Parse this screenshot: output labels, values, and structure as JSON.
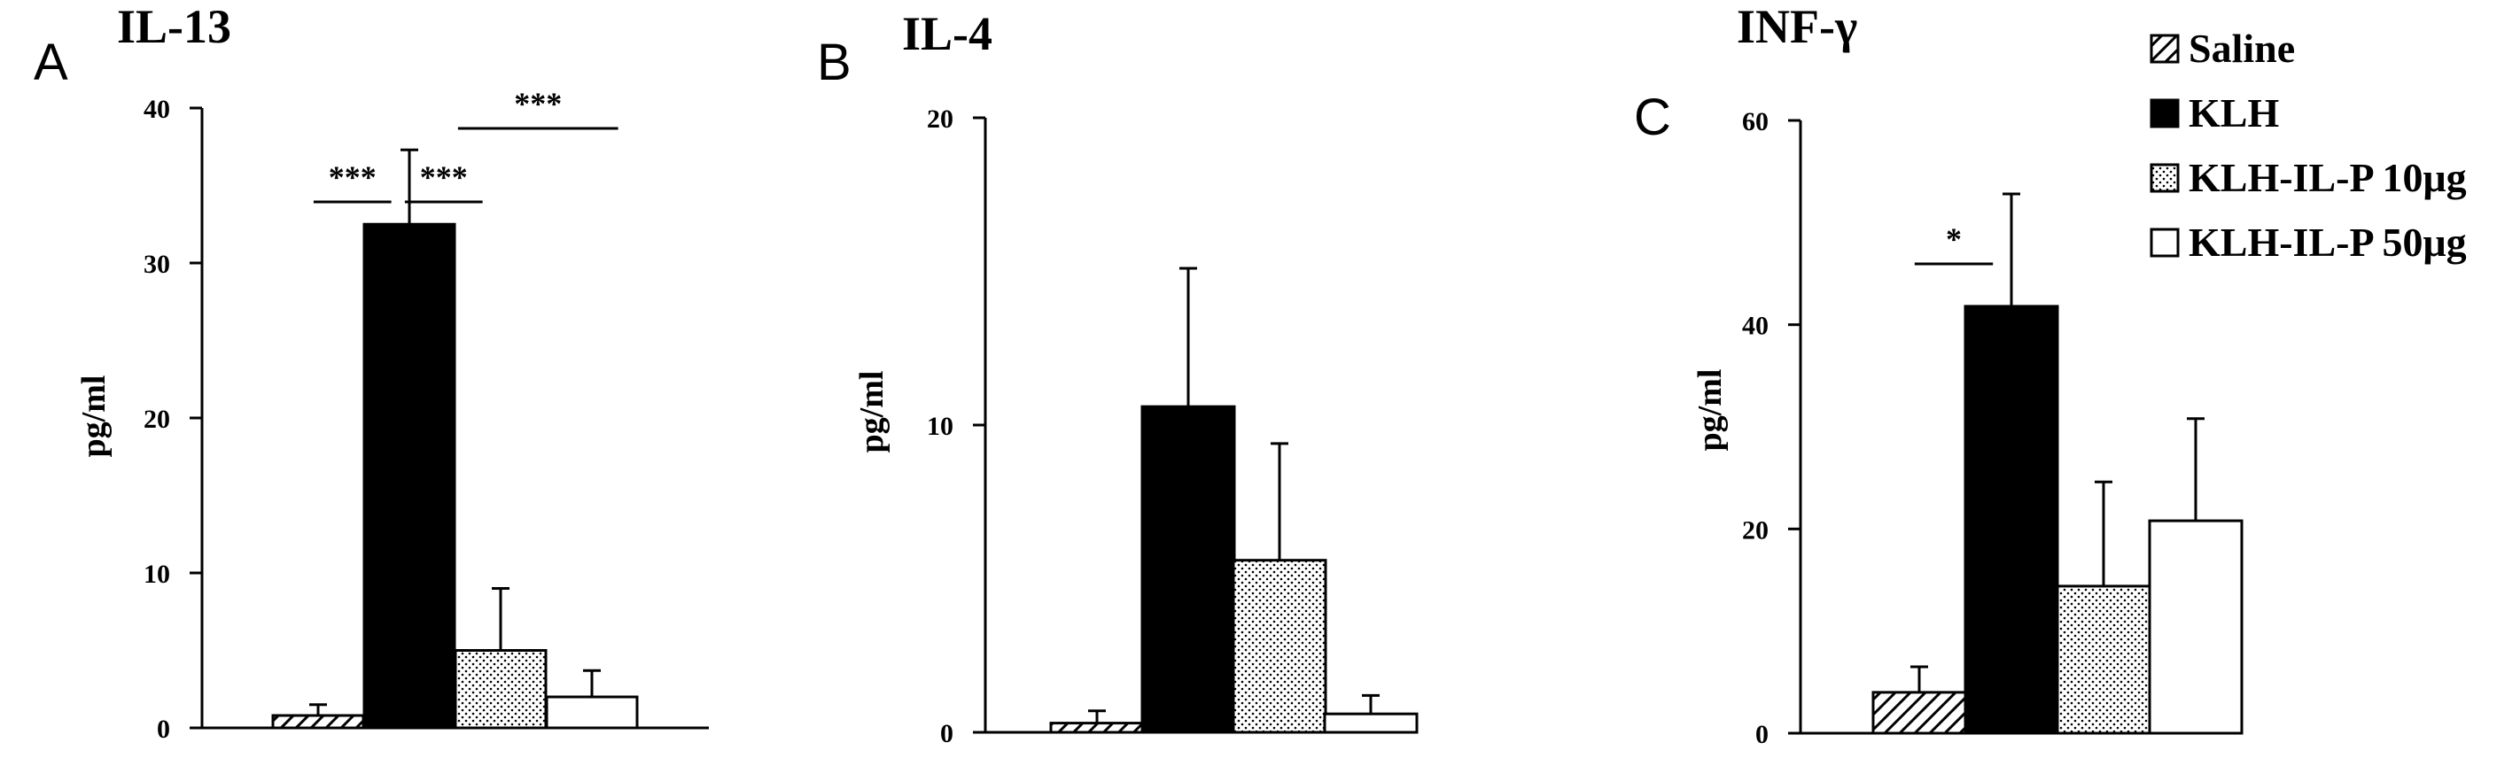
{
  "legend": [
    {
      "label": "Saline",
      "pattern": "hatch"
    },
    {
      "label": "KLH",
      "pattern": "solid"
    },
    {
      "label": "KLH-IL-P 10μg",
      "pattern": "dots"
    },
    {
      "label": "KLH-IL-P 50μg",
      "pattern": "open"
    }
  ],
  "colors": {
    "ink": "#000000",
    "background": "#ffffff"
  },
  "chart_data": [
    {
      "type": "bar",
      "panel": "A",
      "title": "IL-13",
      "ylabel": "pg/ml",
      "xlabel": "",
      "ylim": [
        0,
        40
      ],
      "yticks": [
        0,
        10,
        20,
        30,
        40
      ],
      "categories": [
        "Saline",
        "KLH",
        "KLH-IL-P 10μg",
        "KLH-IL-P 50μg"
      ],
      "values": [
        0.8,
        32.5,
        5.0,
        2.0
      ],
      "errors": [
        0.7,
        4.8,
        4.0,
        1.7
      ],
      "significance": [
        {
          "from": 0,
          "to": 1,
          "label": "***"
        },
        {
          "from": 1,
          "to": 2,
          "label": "***"
        },
        {
          "from": 1,
          "to": 3,
          "label": "***"
        }
      ]
    },
    {
      "type": "bar",
      "panel": "B",
      "title": "IL-4",
      "ylabel": "pg/ml",
      "xlabel": "",
      "ylim": [
        0,
        20
      ],
      "yticks": [
        0,
        10,
        20
      ],
      "categories": [
        "Saline",
        "KLH",
        "KLH-IL-P 10μg",
        "KLH-IL-P 50μg"
      ],
      "values": [
        0.3,
        10.6,
        5.6,
        0.6
      ],
      "errors": [
        0.4,
        4.5,
        3.8,
        0.6
      ],
      "significance": []
    },
    {
      "type": "bar",
      "panel": "C",
      "title": "INF-γ",
      "ylabel": "pg/ml",
      "xlabel": "",
      "ylim": [
        0,
        60
      ],
      "yticks": [
        0,
        20,
        40,
        60
      ],
      "categories": [
        "Saline",
        "KLH",
        "KLH-IL-P 10μg",
        "KLH-IL-P 50μg"
      ],
      "values": [
        4.0,
        41.8,
        14.4,
        20.8
      ],
      "errors": [
        2.5,
        11.0,
        10.2,
        10.0
      ],
      "significance": [
        {
          "from": 0,
          "to": 1,
          "label": "*"
        }
      ]
    }
  ]
}
